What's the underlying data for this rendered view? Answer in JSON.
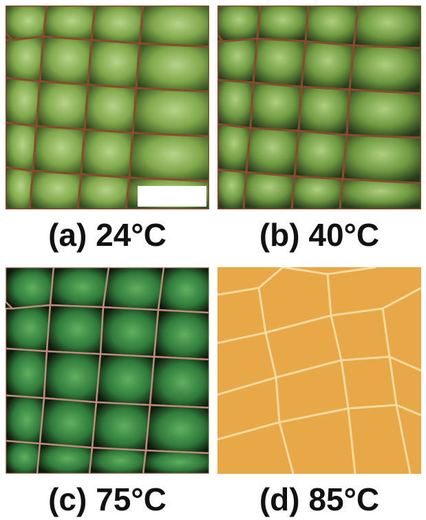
{
  "figure": {
    "panels": [
      {
        "id": "a",
        "caption": "(a) 24°C",
        "style": "green-polarized",
        "scale_bar": true
      },
      {
        "id": "b",
        "caption": "(b) 40°C",
        "style": "green-polarized",
        "scale_bar": false
      },
      {
        "id": "c",
        "caption": "(c) 75°C",
        "style": "green-dark-polarized",
        "scale_bar": false
      },
      {
        "id": "d",
        "caption": "(d) 85°C",
        "style": "orange-isotropic",
        "scale_bar": false
      }
    ],
    "colors": {
      "green_fill": "#7fa84a",
      "green_dark": "#2b3a1a",
      "cell_border": "#8a4a2e",
      "orange_fill": "#e8a848",
      "orange_border": "#f6dba0",
      "scale_bar": "#ffffff"
    }
  }
}
